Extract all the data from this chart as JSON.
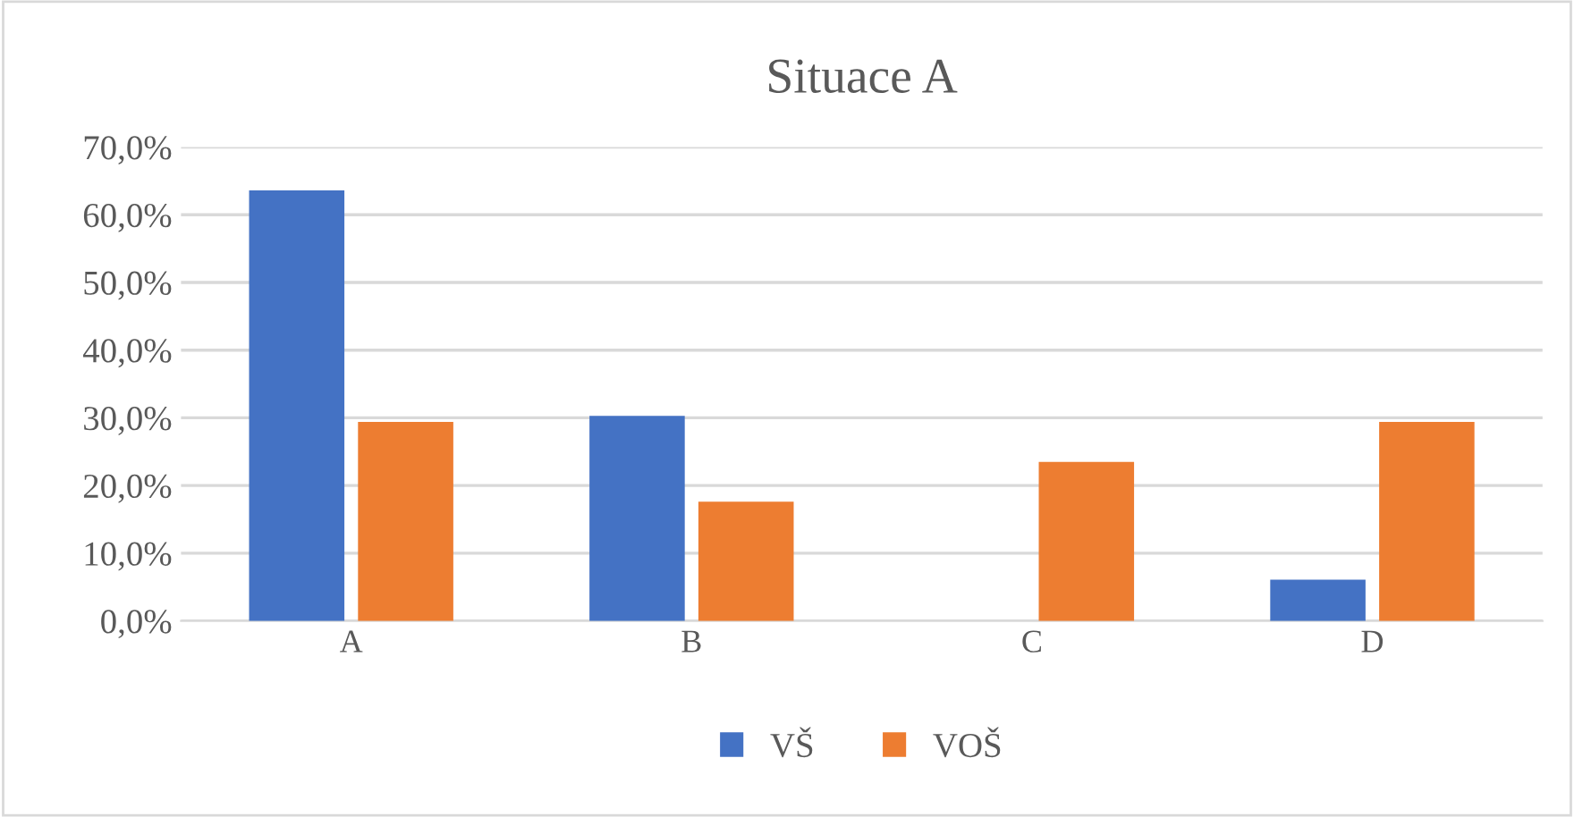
{
  "chart_data": {
    "type": "bar",
    "title": "Situace A",
    "categories": [
      "A",
      "B",
      "C",
      "D"
    ],
    "series": [
      {
        "name": "VŠ",
        "color": "#4472c4",
        "values": [
          63.6,
          30.3,
          0,
          6.1
        ]
      },
      {
        "name": "VOŠ",
        "color": "#ed7d31",
        "values": [
          29.4,
          17.6,
          23.5,
          29.4
        ]
      }
    ],
    "ylim": [
      0,
      70
    ],
    "yticks": [
      {
        "value": 0,
        "label": "0,0%"
      },
      {
        "value": 10,
        "label": "10,0%"
      },
      {
        "value": 20,
        "label": "20,0%"
      },
      {
        "value": 30,
        "label": "30,0%"
      },
      {
        "value": 40,
        "label": "40,0%"
      },
      {
        "value": 50,
        "label": "50,0%"
      },
      {
        "value": 60,
        "label": "60,0%"
      },
      {
        "value": 70,
        "label": "70,0%"
      }
    ],
    "grid": "y",
    "legend": "bottom"
  }
}
